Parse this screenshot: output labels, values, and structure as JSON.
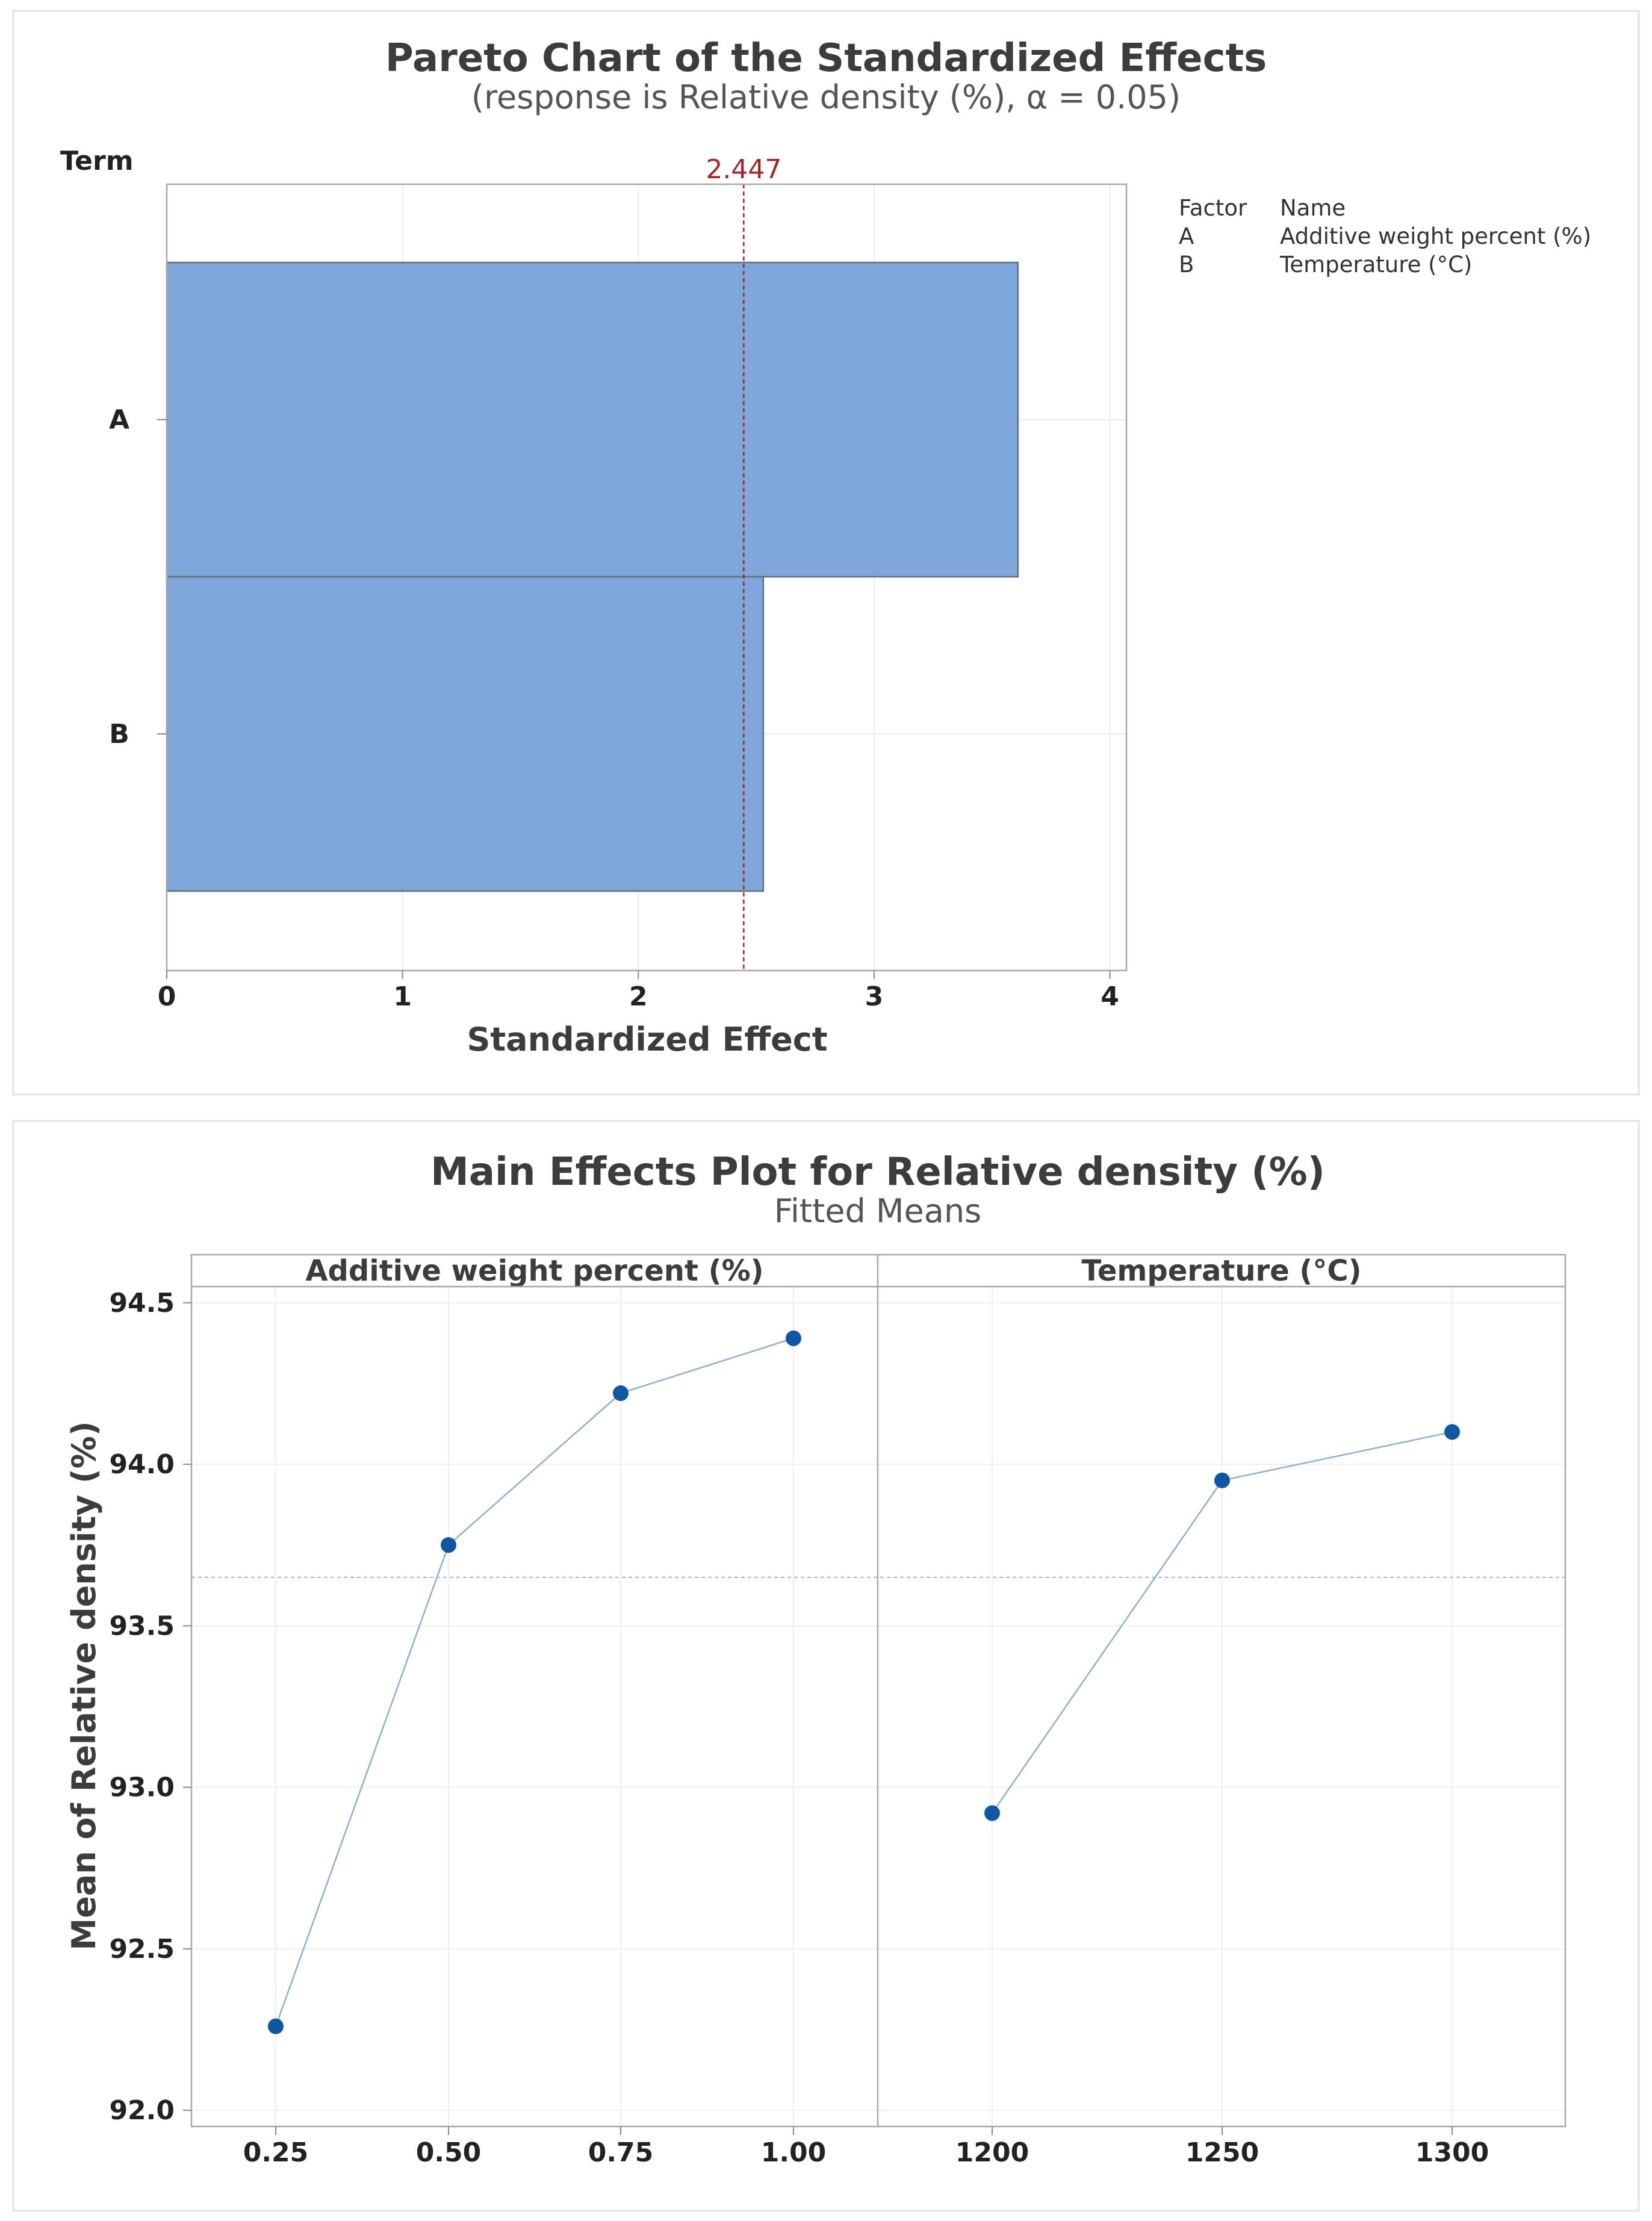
{
  "chart_data": [
    {
      "type": "bar",
      "orientation": "horizontal",
      "title": "Pareto Chart of the Standardized Effects",
      "subtitle": "(response is Relative density (%), α = 0.05)",
      "ylabel": "Term",
      "xlabel": "Standardized Effect",
      "categories": [
        "A",
        "B"
      ],
      "values": [
        3.61,
        2.53
      ],
      "xlim": [
        0,
        4.07
      ],
      "xticks": [
        "0",
        "1",
        "2",
        "3",
        "4"
      ],
      "reference_line": {
        "value": 2.447,
        "label": "2.447",
        "color": "#A0282C"
      },
      "bar_color": "#7EA6D8",
      "grid": true,
      "legend": {
        "placement": "top-right",
        "headers": [
          "Factor",
          "Name"
        ],
        "rows": [
          {
            "factor": "A",
            "name": "Additive weight percent (%)"
          },
          {
            "factor": "B",
            "name": "Temperature (°C)"
          }
        ]
      }
    },
    {
      "type": "line",
      "title": "Main Effects Plot for Relative density (%)",
      "subtitle": "Fitted Means",
      "ylabel": "Mean of Relative density (%)",
      "ylim": [
        91.95,
        94.55
      ],
      "yticks": [
        "92.0",
        "92.5",
        "93.0",
        "93.5",
        "94.0",
        "94.5"
      ],
      "overall_mean": 93.65,
      "line_color": "#8EB0D0",
      "marker_color": "#0F56A3",
      "grid": true,
      "panels": [
        {
          "header": "Additive weight percent (%)",
          "x": [
            "0.25",
            "0.50",
            "0.75",
            "1.00"
          ],
          "values": [
            92.26,
            93.75,
            94.22,
            94.39
          ]
        },
        {
          "header": "Temperature (°C)",
          "x": [
            "1200",
            "1250",
            "1300"
          ],
          "values": [
            92.92,
            93.95,
            94.1
          ]
        }
      ]
    }
  ]
}
